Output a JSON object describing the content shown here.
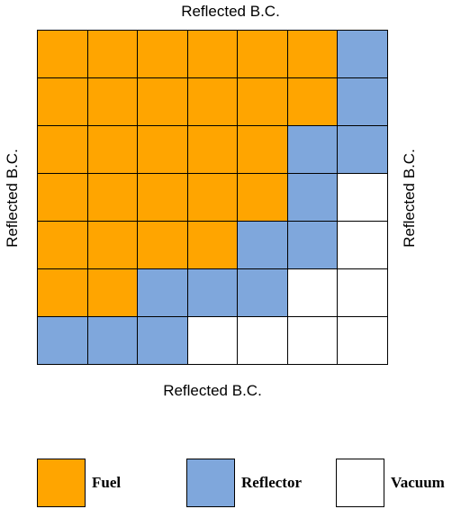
{
  "boundary_conditions": {
    "top": "Reflected B.C.",
    "bottom": "Reflected B.C.",
    "left": "Reflected B.C.",
    "right": "Reflected B.C."
  },
  "materials": {
    "F": {
      "label": "Fuel",
      "color": "#FFA500"
    },
    "R": {
      "label": "Reflector",
      "color": "#7FA7DC"
    },
    "V": {
      "label": "Vacuum",
      "color": "#FFFFFF"
    }
  },
  "grid": [
    [
      "F",
      "F",
      "F",
      "F",
      "F",
      "F",
      "R"
    ],
    [
      "F",
      "F",
      "F",
      "F",
      "F",
      "F",
      "R"
    ],
    [
      "F",
      "F",
      "F",
      "F",
      "F",
      "R",
      "R"
    ],
    [
      "F",
      "F",
      "F",
      "F",
      "F",
      "R",
      "V"
    ],
    [
      "F",
      "F",
      "F",
      "F",
      "R",
      "R",
      "V"
    ],
    [
      "F",
      "F",
      "R",
      "R",
      "R",
      "V",
      "V"
    ],
    [
      "R",
      "R",
      "R",
      "V",
      "V",
      "V",
      "V"
    ]
  ],
  "legend": [
    {
      "key": "F",
      "label": "Fuel"
    },
    {
      "key": "R",
      "label": "Reflector"
    },
    {
      "key": "V",
      "label": "Vacuum"
    }
  ]
}
